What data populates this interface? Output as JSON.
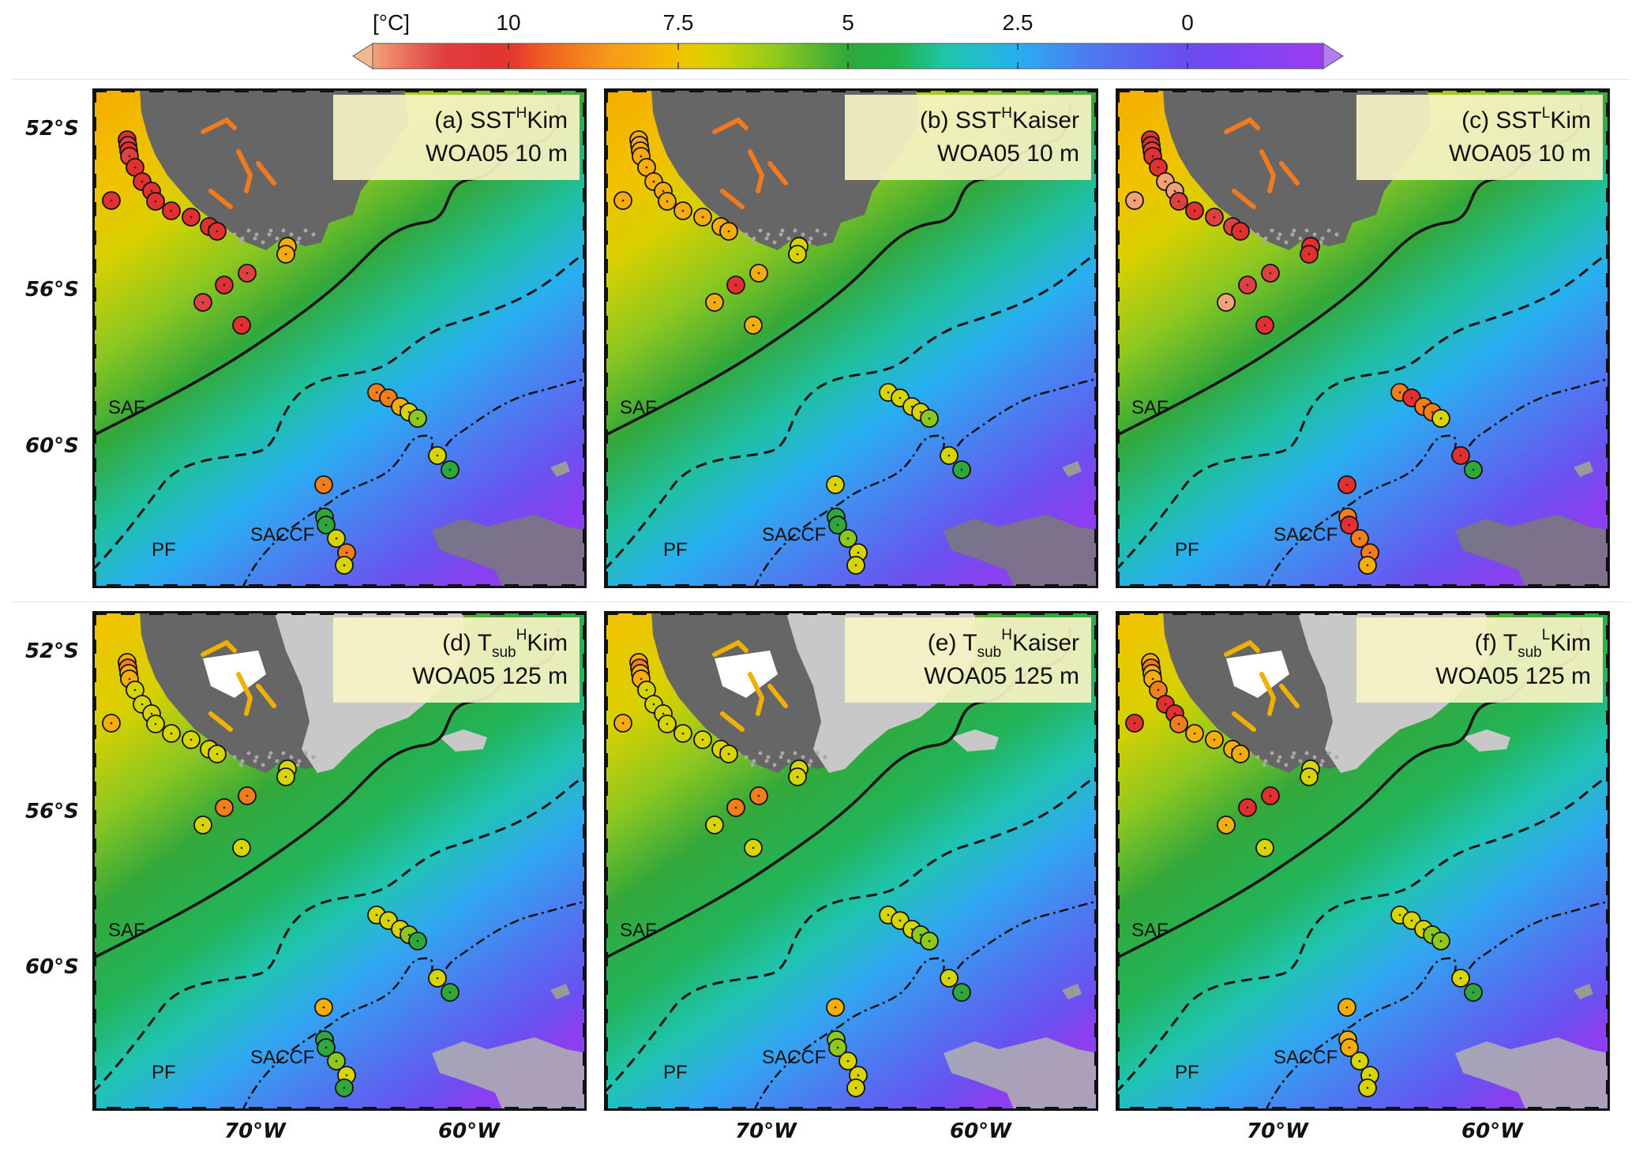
{
  "colorbar": {
    "unit": "[°C]",
    "ticks": [
      "10",
      "7.5",
      "5",
      "2.5",
      "0"
    ],
    "tick_values": [
      10,
      7.5,
      5,
      2.5,
      0
    ],
    "range": [
      -2,
      12
    ]
  },
  "axes": {
    "lat_labels": [
      "52°S",
      "56°S",
      "60°S"
    ],
    "lon_labels": [
      "70°W",
      "60°W"
    ]
  },
  "fronts": {
    "saf": "SAF",
    "pf": "PF",
    "saccf": "SACCF"
  },
  "panels": [
    {
      "id": "a",
      "title_prefix": "(a) ",
      "var": "SST",
      "sub": "",
      "sup": "H",
      "model": "Kim",
      "depth": "WOA05 10 m",
      "mode": "surface"
    },
    {
      "id": "b",
      "title_prefix": "(b) ",
      "var": "SST",
      "sub": "",
      "sup": "H",
      "model": "Kaiser",
      "depth": "WOA05 10 m",
      "mode": "surface"
    },
    {
      "id": "c",
      "title_prefix": "(c) ",
      "var": "SST",
      "sub": "",
      "sup": "L",
      "model": "Kim",
      "depth": "WOA05 10 m",
      "mode": "surface"
    },
    {
      "id": "d",
      "title_prefix": "(d) ",
      "var": "T",
      "sub": "sub",
      "sup": "H",
      "model": "Kim",
      "depth": "WOA05 125 m",
      "mode": "subsurface"
    },
    {
      "id": "e",
      "title_prefix": "(e) ",
      "var": "T",
      "sub": "sub",
      "sup": "H",
      "model": "Kaiser",
      "depth": "WOA05 125 m",
      "mode": "subsurface"
    },
    {
      "id": "f",
      "title_prefix": "(f) ",
      "var": "T",
      "sub": "sub",
      "sup": "L",
      "model": "Kim",
      "depth": "WOA05 125 m",
      "mode": "subsurface"
    }
  ],
  "colors": {
    "land_dark": "#666666",
    "land_light": "#c8c8c8",
    "label_box": "#f7f3c4",
    "front_line": "#111111"
  }
}
